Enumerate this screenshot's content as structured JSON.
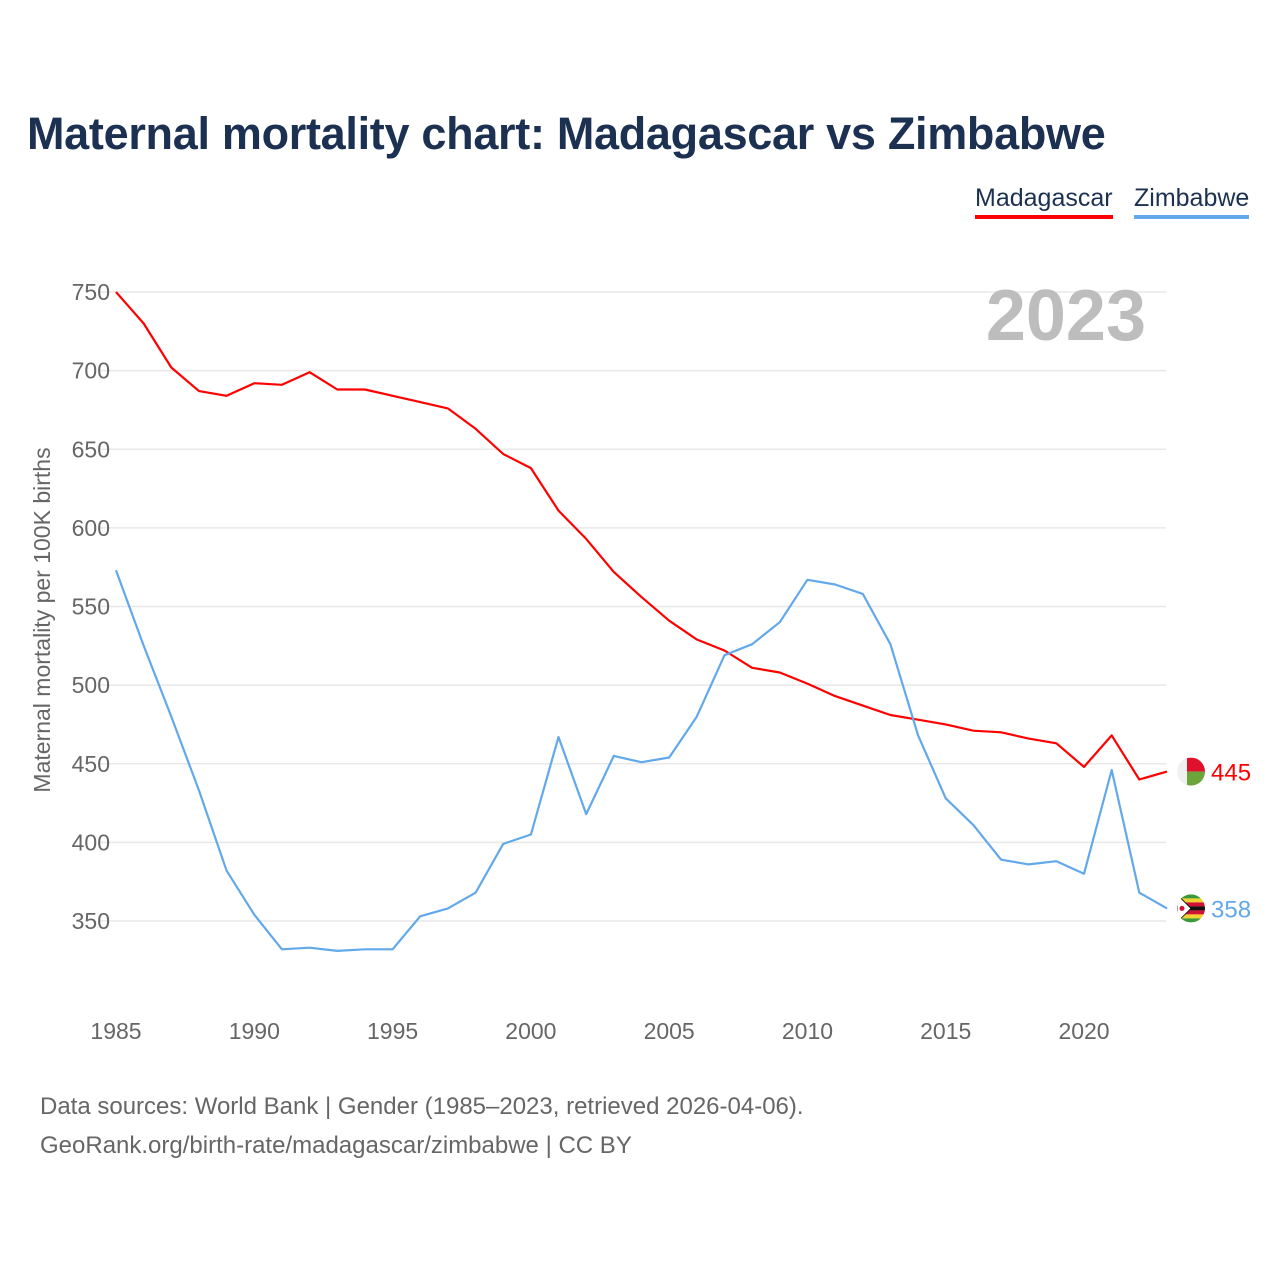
{
  "chart_data": {
    "type": "line",
    "title": "Maternal mortality chart: Madagascar vs Zimbabwe",
    "ylabel": "Maternal mortality per 100K births",
    "xlabel": "",
    "year_watermark": "2023",
    "xlim": [
      1985,
      2023
    ],
    "ylim": [
      300,
      760
    ],
    "x_ticks": [
      1985,
      1990,
      1995,
      2000,
      2005,
      2010,
      2015,
      2020
    ],
    "y_ticks": [
      350,
      400,
      450,
      500,
      550,
      600,
      650,
      700,
      750
    ],
    "grid": true,
    "legend_position": "top-right",
    "x": [
      1985,
      1986,
      1987,
      1988,
      1989,
      1990,
      1991,
      1992,
      1993,
      1994,
      1995,
      1996,
      1997,
      1998,
      1999,
      2000,
      2001,
      2002,
      2003,
      2004,
      2005,
      2006,
      2007,
      2008,
      2009,
      2010,
      2011,
      2012,
      2013,
      2014,
      2015,
      2016,
      2017,
      2018,
      2019,
      2020,
      2021,
      2022,
      2023
    ],
    "series": [
      {
        "name": "Madagascar",
        "color": "#ff0000",
        "end_label": "445",
        "values": [
          750,
          730,
          702,
          687,
          684,
          692,
          691,
          699,
          688,
          688,
          684,
          680,
          676,
          663,
          647,
          638,
          611,
          593,
          572,
          556,
          541,
          529,
          522,
          511,
          508,
          501,
          493,
          487,
          481,
          478,
          475,
          471,
          470,
          466,
          463,
          448,
          468,
          440,
          445
        ]
      },
      {
        "name": "Zimbabwe",
        "color": "#62a8ea",
        "end_label": "358",
        "values": [
          573,
          525,
          480,
          433,
          382,
          354,
          332,
          333,
          331,
          332,
          332,
          353,
          358,
          368,
          399,
          405,
          467,
          418,
          455,
          451,
          454,
          480,
          519,
          526,
          540,
          567,
          564,
          558,
          526,
          468,
          428,
          411,
          389,
          386,
          388,
          380,
          446,
          368,
          358
        ]
      }
    ]
  },
  "footer": {
    "line1": "Data sources: World Bank | Gender (1985–2023, retrieved 2026-04-06).",
    "line2": "GeoRank.org/birth-rate/madagascar/zimbabwe | CC BY"
  }
}
